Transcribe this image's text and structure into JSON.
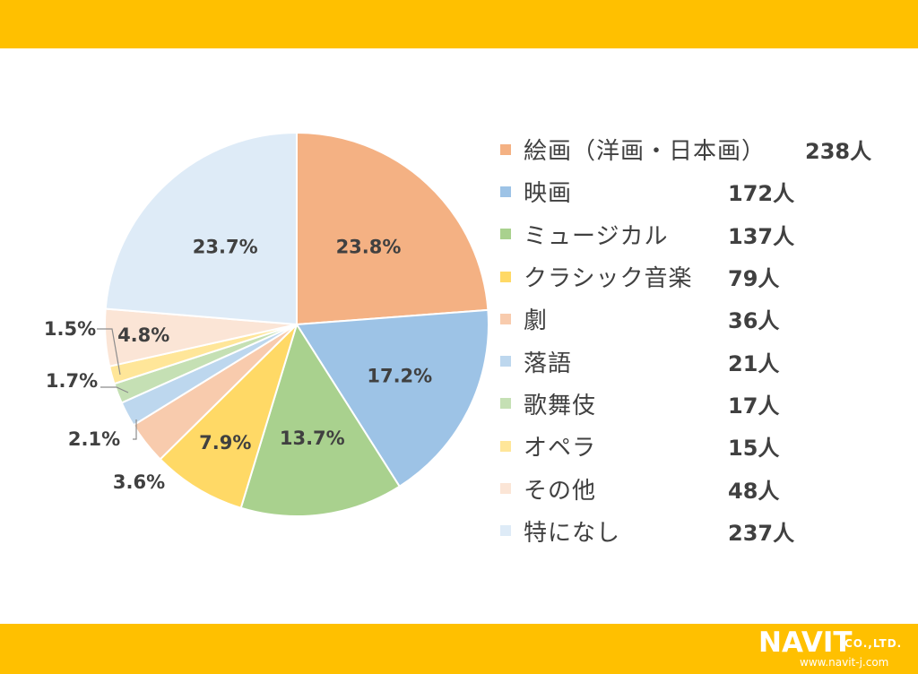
{
  "chart_data": {
    "type": "pie",
    "start_angle_deg": 0,
    "direction": "clockwise",
    "slices": [
      {
        "label": "絵画（洋画・日本画）",
        "count": "238人",
        "percent": 23.8,
        "percent_label": "23.8%",
        "color": "#F4B183"
      },
      {
        "label": "映画",
        "count": "172人",
        "percent": 17.2,
        "percent_label": "17.2%",
        "color": "#9DC3E6"
      },
      {
        "label": "ミュージカル",
        "count": "137人",
        "percent": 13.7,
        "percent_label": "13.7%",
        "color": "#A9D18E"
      },
      {
        "label": "クラシック音楽",
        "count": "79人",
        "percent": 7.9,
        "percent_label": "7.9%",
        "color": "#FFD966"
      },
      {
        "label": "劇",
        "count": "36人",
        "percent": 3.6,
        "percent_label": "3.6%",
        "color": "#F8CBAD"
      },
      {
        "label": "落語",
        "count": "21人",
        "percent": 2.1,
        "percent_label": "2.1%",
        "color": "#BDD7EE"
      },
      {
        "label": "歌舞伎",
        "count": "17人",
        "percent": 1.7,
        "percent_label": "1.7%",
        "color": "#C5E0B4"
      },
      {
        "label": "オペラ",
        "count": "15人",
        "percent": 1.5,
        "percent_label": "1.5%",
        "color": "#FFE699"
      },
      {
        "label": "その他",
        "count": "48人",
        "percent": 4.8,
        "percent_label": "4.8%",
        "color": "#FBE5D6"
      },
      {
        "label": "特になし",
        "count": "237人",
        "percent": 23.7,
        "percent_label": "23.7%",
        "color": "#DEEBF7"
      }
    ]
  },
  "logo": {
    "brand": "NAVIT",
    "suffix": "CO.,LTD.",
    "url": "www.navit-j.com"
  }
}
